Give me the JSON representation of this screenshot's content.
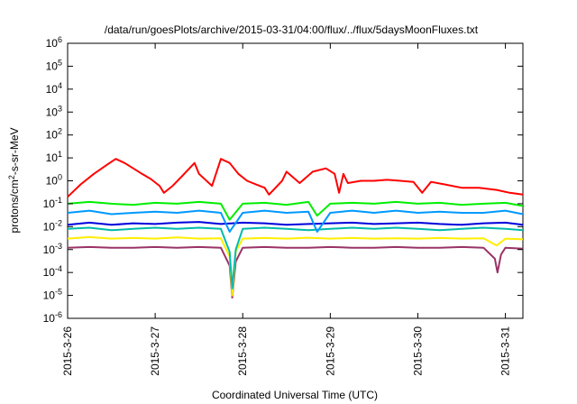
{
  "chart_data": {
    "type": "line",
    "title": "/data/run/goesPlots/archive/2015-03-31/04:00/flux/../flux/5daysMoonFluxes.txt",
    "xlabel": "Coordinated Universal Time (UTC)",
    "ylabel": {
      "prefix": "protons/cm",
      "sup": "2",
      "suffix": "-s-sr-MeV"
    },
    "scale_y": "log",
    "ylim": [
      1e-06,
      1000000.0
    ],
    "xlim": [
      0,
      5.2
    ],
    "y_ticks": [
      {
        "value": 1e-06,
        "base": "10",
        "exp": "-6"
      },
      {
        "value": 1e-05,
        "base": "10",
        "exp": "-5"
      },
      {
        "value": 0.0001,
        "base": "10",
        "exp": "-4"
      },
      {
        "value": 0.001,
        "base": "10",
        "exp": "-3"
      },
      {
        "value": 0.01,
        "base": "10",
        "exp": "-2"
      },
      {
        "value": 0.1,
        "base": "10",
        "exp": "-1"
      },
      {
        "value": 1,
        "base": "10",
        "exp": "0"
      },
      {
        "value": 10.0,
        "base": "10",
        "exp": "1"
      },
      {
        "value": 100.0,
        "base": "10",
        "exp": "2"
      },
      {
        "value": 1000.0,
        "base": "10",
        "exp": "3"
      },
      {
        "value": 10000.0,
        "base": "10",
        "exp": "4"
      },
      {
        "value": 100000.0,
        "base": "10",
        "exp": "5"
      },
      {
        "value": 1000000.0,
        "base": "10",
        "exp": "6"
      }
    ],
    "x_ticks": [
      {
        "value": 0,
        "label": "2015-3-26"
      },
      {
        "value": 1,
        "label": "2015-3-27"
      },
      {
        "value": 2,
        "label": "2015-3-28"
      },
      {
        "value": 3,
        "label": "2015-3-29"
      },
      {
        "value": 4,
        "label": "2015-3-30"
      },
      {
        "value": 5,
        "label": "2015-3-31"
      }
    ],
    "grid": false,
    "legend": "none",
    "series": [
      {
        "color": "#ff0000",
        "x": [
          0.0,
          0.15,
          0.3,
          0.45,
          0.55,
          0.65,
          0.75,
          0.85,
          0.95,
          1.05,
          1.1,
          1.2,
          1.3,
          1.45,
          1.5,
          1.65,
          1.75,
          1.85,
          1.95,
          2.05,
          2.15,
          2.25,
          2.3,
          2.45,
          2.5,
          2.65,
          2.8,
          2.95,
          3.05,
          3.1,
          3.15,
          3.2,
          3.35,
          3.5,
          3.65,
          3.8,
          3.95,
          4.05,
          4.15,
          4.3,
          4.5,
          4.7,
          4.9,
          5.05,
          5.2
        ],
        "values": [
          0.2,
          0.7,
          2,
          5,
          9,
          6,
          3.5,
          2,
          1.2,
          0.6,
          0.3,
          0.6,
          1.5,
          6,
          2,
          0.6,
          9,
          6,
          2,
          1,
          0.7,
          0.5,
          0.25,
          1,
          2.5,
          0.8,
          2.5,
          3.5,
          2,
          0.3,
          2,
          0.8,
          1,
          1,
          1.1,
          1,
          0.9,
          0.3,
          0.9,
          0.7,
          0.5,
          0.5,
          0.4,
          0.3,
          0.25
        ]
      },
      {
        "color": "#00ee00",
        "x": [
          0.0,
          0.25,
          0.5,
          0.75,
          1.0,
          1.25,
          1.5,
          1.75,
          1.85,
          2.0,
          2.25,
          2.5,
          2.75,
          2.85,
          3.0,
          3.25,
          3.5,
          3.75,
          4.0,
          4.25,
          4.5,
          4.75,
          5.0,
          5.2
        ],
        "values": [
          0.1,
          0.12,
          0.1,
          0.09,
          0.11,
          0.1,
          0.12,
          0.1,
          0.02,
          0.1,
          0.11,
          0.09,
          0.12,
          0.03,
          0.1,
          0.11,
          0.1,
          0.12,
          0.1,
          0.11,
          0.09,
          0.1,
          0.11,
          0.08
        ]
      },
      {
        "color": "#0099ff",
        "x": [
          0.0,
          0.25,
          0.5,
          0.75,
          1.0,
          1.25,
          1.5,
          1.75,
          1.85,
          2.0,
          2.25,
          2.5,
          2.75,
          2.85,
          3.0,
          3.25,
          3.5,
          3.75,
          4.0,
          4.25,
          4.5,
          4.75,
          5.0,
          5.2
        ],
        "values": [
          0.04,
          0.05,
          0.035,
          0.04,
          0.045,
          0.04,
          0.05,
          0.04,
          0.006,
          0.04,
          0.05,
          0.04,
          0.045,
          0.006,
          0.04,
          0.05,
          0.04,
          0.05,
          0.04,
          0.045,
          0.04,
          0.04,
          0.05,
          0.035
        ]
      },
      {
        "color": "#0000dd",
        "x": [
          0.0,
          0.25,
          0.5,
          0.75,
          1.0,
          1.25,
          1.5,
          1.75,
          2.0,
          2.25,
          2.5,
          2.75,
          3.0,
          3.25,
          3.5,
          3.75,
          4.0,
          4.25,
          4.5,
          4.75,
          5.0,
          5.2
        ],
        "values": [
          0.012,
          0.015,
          0.012,
          0.014,
          0.013,
          0.015,
          0.016,
          0.013,
          0.015,
          0.014,
          0.012,
          0.013,
          0.014,
          0.015,
          0.013,
          0.014,
          0.015,
          0.013,
          0.012,
          0.014,
          0.015,
          0.012
        ]
      },
      {
        "color": "#00bbaa",
        "x": [
          0.0,
          0.25,
          0.5,
          0.75,
          1.0,
          1.25,
          1.5,
          1.75,
          1.85,
          1.88,
          1.92,
          2.0,
          2.25,
          2.5,
          2.75,
          3.0,
          3.25,
          3.5,
          3.75,
          4.0,
          4.25,
          4.5,
          4.75,
          5.0,
          5.2
        ],
        "values": [
          0.008,
          0.009,
          0.007,
          0.008,
          0.009,
          0.008,
          0.009,
          0.008,
          0.0008,
          2e-05,
          0.001,
          0.008,
          0.009,
          0.008,
          0.007,
          0.008,
          0.009,
          0.008,
          0.009,
          0.008,
          0.007,
          0.008,
          0.009,
          0.008,
          0.007
        ]
      },
      {
        "color": "#ffee00",
        "x": [
          0.0,
          0.25,
          0.5,
          0.75,
          1.0,
          1.25,
          1.5,
          1.75,
          1.85,
          1.88,
          1.92,
          2.0,
          2.25,
          2.5,
          2.75,
          3.0,
          3.25,
          3.5,
          3.75,
          4.0,
          4.25,
          4.5,
          4.75,
          4.9,
          5.0,
          5.2
        ],
        "values": [
          0.003,
          0.0035,
          0.003,
          0.0032,
          0.003,
          0.0034,
          0.003,
          0.0031,
          0.0005,
          1e-05,
          0.0008,
          0.003,
          0.0032,
          0.003,
          0.0033,
          0.003,
          0.0032,
          0.003,
          0.0031,
          0.003,
          0.0032,
          0.003,
          0.0031,
          0.0015,
          0.003,
          0.0028
        ]
      },
      {
        "color": "#993366",
        "x": [
          0.0,
          0.25,
          0.5,
          0.75,
          1.0,
          1.25,
          1.5,
          1.75,
          1.85,
          1.88,
          1.92,
          2.0,
          2.25,
          2.5,
          2.75,
          3.0,
          3.25,
          3.5,
          3.75,
          4.0,
          4.25,
          4.5,
          4.75,
          4.88,
          4.91,
          4.95,
          5.0,
          5.2
        ],
        "values": [
          0.0012,
          0.0013,
          0.0012,
          0.0012,
          0.0013,
          0.0012,
          0.0013,
          0.0012,
          0.0002,
          8e-06,
          0.0003,
          0.0012,
          0.0013,
          0.0012,
          0.0012,
          0.0013,
          0.0012,
          0.0012,
          0.0013,
          0.0012,
          0.0012,
          0.0013,
          0.0012,
          0.0004,
          0.0001,
          0.0006,
          0.0012,
          0.0011
        ]
      }
    ]
  }
}
